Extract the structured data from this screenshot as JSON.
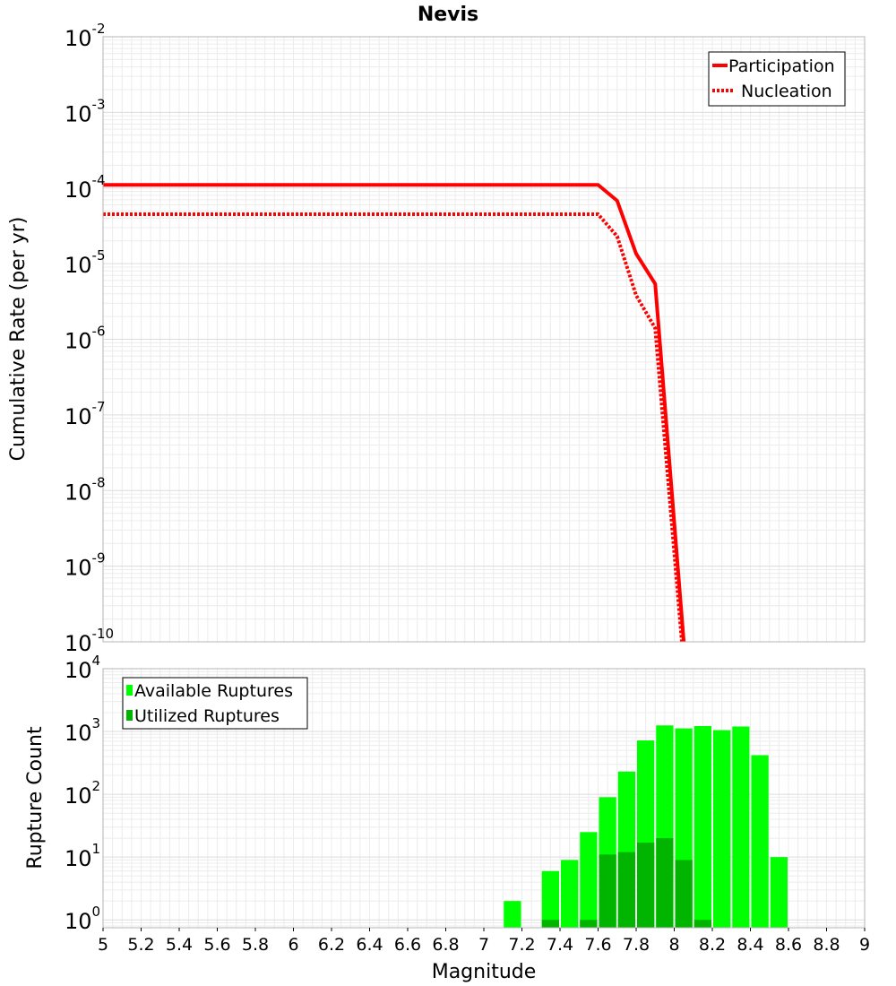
{
  "chart_data": [
    {
      "type": "line",
      "title": "Nevis",
      "xlabel": "",
      "ylabel": "Cumulative Rate (per yr)",
      "xlim": [
        5,
        9
      ],
      "yscale": "log",
      "ylim": [
        1e-10,
        0.01
      ],
      "ytick_exponents": [
        -2,
        -3,
        -4,
        -5,
        -6,
        -7,
        -8,
        -9,
        -10
      ],
      "grid": true,
      "legend_position": "top-right",
      "series": [
        {
          "name": "Participation",
          "style": "solid",
          "color": "#ff0000",
          "x": [
            5.0,
            7.6,
            7.7,
            7.8,
            7.9,
            8.05
          ],
          "y": [
            0.00011,
            0.00011,
            6.8e-05,
            1.35e-05,
            5.4e-06,
            1e-10
          ]
        },
        {
          "name": "Nucleation",
          "style": "dotted",
          "color": "#ff0000",
          "x": [
            5.0,
            7.6,
            7.7,
            7.8,
            7.9,
            8.04
          ],
          "y": [
            4.5e-05,
            4.5e-05,
            2.3e-05,
            3.8e-06,
            1.4e-06,
            1e-10
          ]
        }
      ]
    },
    {
      "type": "bar",
      "title": "",
      "xlabel": "Magnitude",
      "ylabel": "Rupture Count",
      "xlim": [
        5,
        9
      ],
      "xticks": [
        "5",
        "5.2",
        "5.4",
        "5.6",
        "5.8",
        "6",
        "6.2",
        "6.4",
        "6.6",
        "6.8",
        "7",
        "7.2",
        "7.4",
        "7.6",
        "7.8",
        "8",
        "8.2",
        "8.4",
        "8.6",
        "8.8",
        "9"
      ],
      "yscale": "log",
      "ylim": [
        0.75,
        10000
      ],
      "ytick_exponents": [
        4,
        3,
        2,
        1,
        0
      ],
      "grid": true,
      "legend_position": "top-left",
      "bin_width": 0.1,
      "series": [
        {
          "name": "Available Ruptures",
          "color": "#00ff00",
          "x": [
            7.15,
            7.35,
            7.45,
            7.55,
            7.65,
            7.75,
            7.85,
            7.95,
            8.05,
            8.15,
            8.25,
            8.35,
            8.45,
            8.55
          ],
          "values": [
            2,
            6,
            9,
            25,
            90,
            230,
            720,
            1250,
            1120,
            1220,
            1050,
            1200,
            420,
            10
          ]
        },
        {
          "name": "Utilized Ruptures",
          "color": "#00b400",
          "x": [
            7.35,
            7.55,
            7.65,
            7.75,
            7.85,
            7.95,
            8.05,
            8.15
          ],
          "values": [
            1,
            1,
            11,
            12,
            17,
            20,
            9,
            1
          ]
        }
      ]
    }
  ]
}
